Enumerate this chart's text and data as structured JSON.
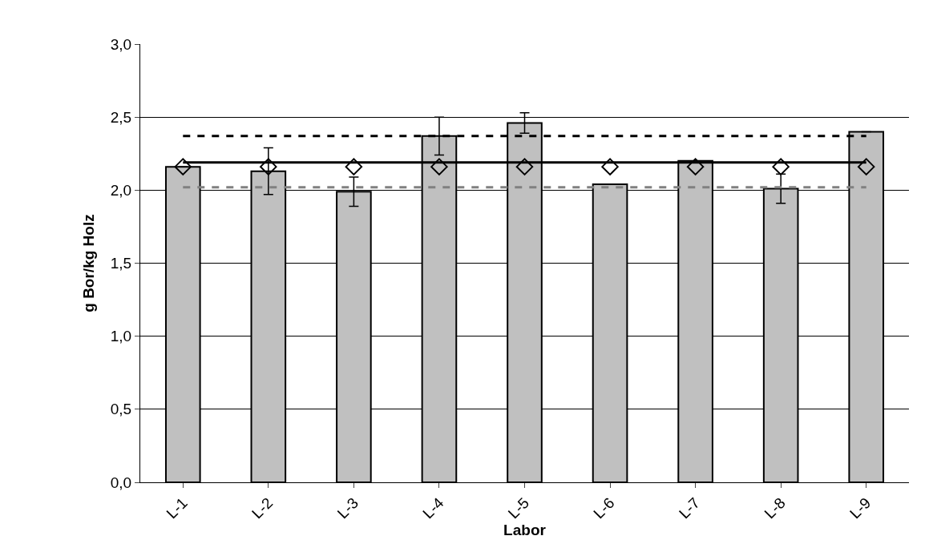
{
  "chart_data": {
    "type": "bar",
    "xlabel": "Labor",
    "ylabel": "g Bor/kg Holz",
    "categories": [
      "L-1",
      "L-2",
      "L-3",
      "L-4",
      "L-5",
      "L-6",
      "L-7",
      "L-8",
      "L-9"
    ],
    "series": [
      {
        "color": "#c0c0c0",
        "values": [
          2.16,
          2.13,
          1.99,
          2.37,
          2.46,
          2.04,
          2.2,
          2.01,
          2.4
        ],
        "errors": [
          null,
          0.16,
          0.1,
          0.13,
          0.07,
          null,
          null,
          0.1,
          null
        ]
      },
      {
        "type": "scatter",
        "color": "#000000",
        "marker": "diamond",
        "values": [
          2.16,
          2.16,
          2.16,
          2.16,
          2.16,
          2.16,
          2.16,
          2.16,
          2.16
        ]
      },
      {
        "type": "line",
        "color": "#000000",
        "line_style": "solid",
        "marker": "none",
        "values": [
          2.19,
          2.19,
          2.19,
          2.19,
          2.19,
          2.19,
          2.19,
          2.19,
          2.19
        ]
      },
      {
        "type": "line",
        "color": "#000000",
        "line_style": "dashed",
        "marker": "none",
        "values": [
          2.37,
          2.37,
          2.37,
          2.37,
          2.37,
          2.37,
          2.37,
          2.37,
          2.37
        ]
      },
      {
        "type": "line",
        "color": "#808080",
        "line_style": "dashed",
        "marker": "none",
        "values": [
          2.02,
          2.02,
          2.02,
          2.02,
          2.02,
          2.02,
          2.02,
          2.02,
          2.02
        ]
      }
    ],
    "ylim": [
      0,
      3
    ],
    "yticks": [
      {
        "value": 0,
        "label": "0,0"
      },
      {
        "value": 0.5,
        "label": "0,5"
      },
      {
        "value": 1,
        "label": "1,0"
      },
      {
        "value": 1.5,
        "label": "1,5"
      },
      {
        "value": 2,
        "label": "2,0"
      },
      {
        "value": 2.5,
        "label": "2,5"
      },
      {
        "value": 3,
        "label": "3,0"
      }
    ],
    "grid": "y",
    "legend": false
  }
}
